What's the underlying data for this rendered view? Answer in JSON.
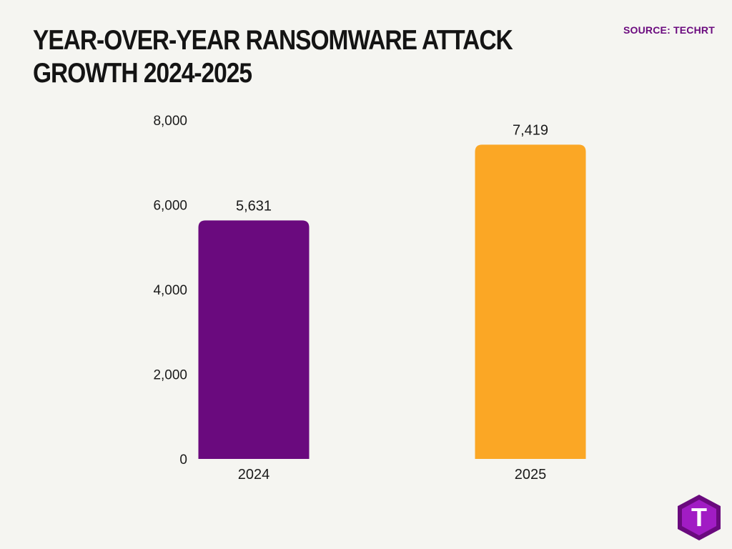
{
  "title": "YEAR-OVER-YEAR RANSOMWARE ATTACK GROWTH 2024-2025",
  "source": "SOURCE: TECHRT",
  "logo": {
    "icon": "techrt-logo-icon",
    "letter": "T",
    "colors": {
      "outer": "#6a0a7e",
      "inner": "#a11cc4",
      "letter": "#ffffff"
    }
  },
  "colors": {
    "background": "#f5f5f1",
    "title": "#141414",
    "source": "#6a0a7e",
    "axis_text": "#1a1a1a"
  },
  "chart_data": {
    "type": "bar",
    "categories": [
      "2024",
      "2025"
    ],
    "values": [
      5631,
      7419
    ],
    "data_labels": [
      "5,631",
      "7,419"
    ],
    "bar_colors": [
      "#6a0a7e",
      "#fba725"
    ],
    "ylim": [
      0,
      8000
    ],
    "yticks": [
      0,
      2000,
      4000,
      6000,
      8000
    ],
    "ytick_labels": [
      "0",
      "2,000",
      "4,000",
      "6,000",
      "8,000"
    ],
    "title": "YEAR-OVER-YEAR RANSOMWARE ATTACK GROWTH 2024-2025",
    "xlabel": "",
    "ylabel": "",
    "grid": false,
    "legend": "none"
  }
}
